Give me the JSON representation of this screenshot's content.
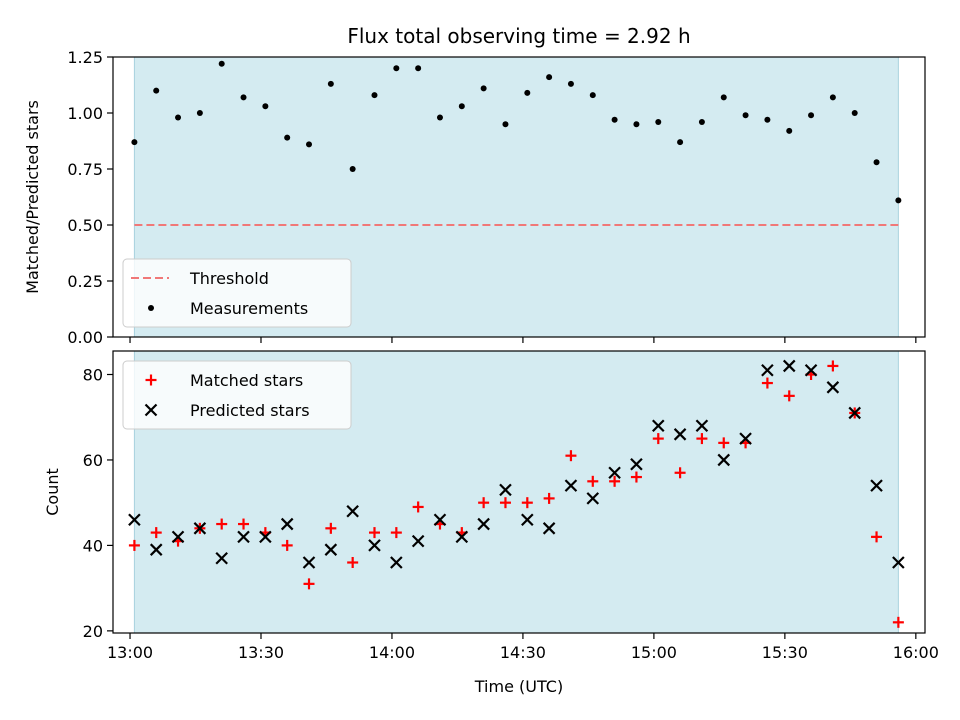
{
  "chart_data": {
    "title": "Flux total observing time = 2.92 h",
    "xlabel": "Time (UTC)",
    "x_tick_labels": [
      "13:00",
      "13:30",
      "14:00",
      "14:30",
      "15:00",
      "15:30",
      "16:00"
    ],
    "x_ticks_hours": [
      13.0,
      13.5,
      14.0,
      14.5,
      15.0,
      15.5,
      16.0
    ],
    "xlim_hours": [
      12.935,
      16.035
    ],
    "observing_window_hours": [
      13.0167,
      15.9333
    ],
    "shade_color": "#d4ebf1",
    "panels": [
      {
        "type": "scatter",
        "ylabel": "Matched/Predicted stars",
        "ylim": [
          0,
          1.25
        ],
        "y_ticks": [
          0,
          0.25,
          0.5,
          0.75,
          1.0,
          1.25
        ],
        "y_tick_labels": [
          "0.00",
          "0.25",
          "0.50",
          "0.75",
          "1.00",
          "1.25"
        ],
        "legend_position": "lower-left",
        "threshold": {
          "name": "Threshold",
          "value": 0.5,
          "color": "#f07878"
        },
        "series": [
          {
            "name": "Measurements",
            "marker": "dot",
            "color": "#000000",
            "x_hours": [
              13.0167,
              13.1,
              13.1833,
              13.2667,
              13.35,
              13.4333,
              13.5167,
              13.6,
              13.6833,
              13.7667,
              13.85,
              13.9333,
              14.0167,
              14.1,
              14.1833,
              14.2667,
              14.35,
              14.4333,
              14.5167,
              14.6,
              14.6833,
              14.7667,
              14.85,
              14.9333,
              15.0167,
              15.1,
              15.1833,
              15.2667,
              15.35,
              15.4333,
              15.5167,
              15.6,
              15.6833,
              15.7667,
              15.85,
              15.9333
            ],
            "values": [
              0.87,
              1.1,
              0.98,
              1.0,
              1.22,
              1.07,
              1.03,
              0.89,
              0.86,
              1.13,
              0.75,
              1.08,
              1.2,
              1.2,
              0.98,
              1.03,
              1.11,
              0.95,
              1.09,
              1.16,
              1.13,
              1.08,
              0.97,
              0.95,
              0.96,
              0.87,
              0.96,
              1.07,
              0.99,
              0.97,
              0.92,
              0.99,
              1.07,
              1.0,
              0.78,
              0.61
            ]
          }
        ]
      },
      {
        "type": "scatter",
        "ylabel": "Count",
        "ylim": [
          19.5,
          85.5
        ],
        "y_ticks": [
          20,
          40,
          60,
          80
        ],
        "y_tick_labels": [
          "20",
          "40",
          "60",
          "80"
        ],
        "legend_position": "upper-left",
        "series": [
          {
            "name": "Matched stars",
            "marker": "plus",
            "color": "#ff0000",
            "x_hours": [
              13.0167,
              13.1,
              13.1833,
              13.2667,
              13.35,
              13.4333,
              13.5167,
              13.6,
              13.6833,
              13.7667,
              13.85,
              13.9333,
              14.0167,
              14.1,
              14.1833,
              14.2667,
              14.35,
              14.4333,
              14.5167,
              14.6,
              14.6833,
              14.7667,
              14.85,
              14.9333,
              15.0167,
              15.1,
              15.1833,
              15.2667,
              15.35,
              15.4333,
              15.5167,
              15.6,
              15.6833,
              15.7667,
              15.85,
              15.9333
            ],
            "values": [
              40,
              43,
              41,
              44,
              45,
              45,
              43,
              40,
              31,
              44,
              36,
              43,
              43,
              49,
              45,
              43,
              50,
              50,
              50,
              51,
              61,
              55,
              55,
              56,
              65,
              57,
              65,
              64,
              64,
              78,
              75,
              80,
              82,
              71,
              42,
              22
            ]
          },
          {
            "name": "Predicted stars",
            "marker": "x",
            "color": "#000000",
            "x_hours": [
              13.0167,
              13.1,
              13.1833,
              13.2667,
              13.35,
              13.4333,
              13.5167,
              13.6,
              13.6833,
              13.7667,
              13.85,
              13.9333,
              14.0167,
              14.1,
              14.1833,
              14.2667,
              14.35,
              14.4333,
              14.5167,
              14.6,
              14.6833,
              14.7667,
              14.85,
              14.9333,
              15.0167,
              15.1,
              15.1833,
              15.2667,
              15.35,
              15.4333,
              15.5167,
              15.6,
              15.6833,
              15.7667,
              15.85,
              15.9333
            ],
            "values": [
              46,
              39,
              42,
              44,
              37,
              42,
              42,
              45,
              36,
              39,
              48,
              40,
              36,
              41,
              46,
              42,
              45,
              53,
              46,
              44,
              54,
              51,
              57,
              59,
              68,
              66,
              68,
              60,
              65,
              81,
              82,
              81,
              77,
              71,
              54,
              36
            ]
          }
        ]
      }
    ]
  }
}
